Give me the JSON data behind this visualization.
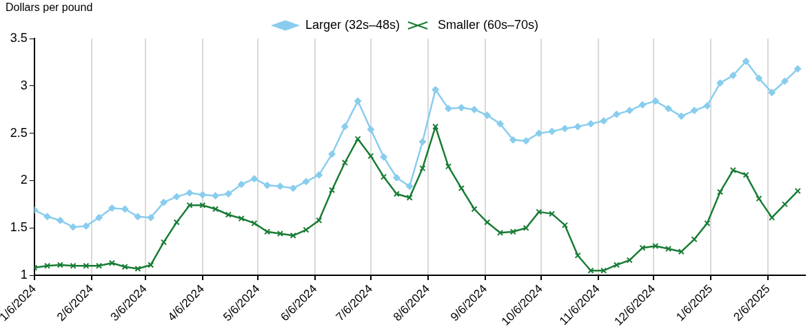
{
  "chart_data": {
    "type": "line",
    "ylabel": "Dollars per pound",
    "x": [
      "2024-01-06",
      "2024-01-13",
      "2024-01-20",
      "2024-01-27",
      "2024-02-03",
      "2024-02-10",
      "2024-02-17",
      "2024-02-24",
      "2024-03-02",
      "2024-03-09",
      "2024-03-16",
      "2024-03-23",
      "2024-03-30",
      "2024-04-06",
      "2024-04-13",
      "2024-04-20",
      "2024-04-27",
      "2024-05-04",
      "2024-05-11",
      "2024-05-18",
      "2024-05-25",
      "2024-06-01",
      "2024-06-08",
      "2024-06-15",
      "2024-06-22",
      "2024-06-29",
      "2024-07-06",
      "2024-07-13",
      "2024-07-20",
      "2024-07-27",
      "2024-08-03",
      "2024-08-10",
      "2024-08-17",
      "2024-08-24",
      "2024-08-31",
      "2024-09-07",
      "2024-09-14",
      "2024-09-21",
      "2024-09-28",
      "2024-10-05",
      "2024-10-12",
      "2024-10-19",
      "2024-10-26",
      "2024-11-02",
      "2024-11-09",
      "2024-11-16",
      "2024-11-23",
      "2024-11-30",
      "2024-12-07",
      "2024-12-14",
      "2024-12-21",
      "2024-12-28",
      "2025-01-04",
      "2025-01-11",
      "2025-01-18",
      "2025-01-25",
      "2025-02-01",
      "2025-02-08",
      "2025-02-15",
      "2025-02-22"
    ],
    "series": [
      {
        "name": "Larger (32s–48s)",
        "color": "#89cdee",
        "marker": "diamond",
        "values": [
          1.69,
          1.62,
          1.58,
          1.51,
          1.52,
          1.61,
          1.71,
          1.7,
          1.62,
          1.61,
          1.77,
          1.83,
          1.87,
          1.85,
          1.84,
          1.86,
          1.96,
          2.02,
          1.95,
          1.94,
          1.92,
          1.99,
          2.06,
          2.28,
          2.57,
          2.84,
          2.54,
          2.25,
          2.03,
          1.94,
          2.41,
          2.96,
          2.76,
          2.77,
          2.75,
          2.69,
          2.6,
          2.43,
          2.42,
          2.5,
          2.52,
          2.55,
          2.57,
          2.6,
          2.63,
          2.7,
          2.74,
          2.8,
          2.84,
          2.76,
          2.68,
          2.74,
          2.79,
          3.03,
          3.11,
          3.26,
          3.08,
          2.93,
          3.05,
          3.18
        ]
      },
      {
        "name": "Smaller (60s–70s)",
        "color": "#187c34",
        "marker": "cross",
        "values": [
          1.08,
          1.1,
          1.11,
          1.1,
          1.1,
          1.1,
          1.13,
          1.09,
          1.07,
          1.11,
          1.35,
          1.56,
          1.74,
          1.74,
          1.7,
          1.64,
          1.6,
          1.55,
          1.46,
          1.44,
          1.42,
          1.48,
          1.58,
          1.9,
          2.19,
          2.44,
          2.26,
          2.04,
          1.86,
          1.82,
          2.13,
          2.57,
          2.15,
          1.92,
          1.7,
          1.56,
          1.45,
          1.46,
          1.5,
          1.67,
          1.65,
          1.53,
          1.21,
          1.05,
          1.05,
          1.11,
          1.16,
          1.29,
          1.31,
          1.28,
          1.25,
          1.38,
          1.55,
          1.88,
          2.11,
          2.06,
          1.81,
          1.61,
          1.75,
          1.89
        ]
      }
    ],
    "xlim": [
      "2024-01-06",
      "2025-02-26"
    ],
    "xticks": [
      {
        "value": "2024-01-06",
        "label": "1/6/2024"
      },
      {
        "value": "2024-02-06",
        "label": "2/6/2024"
      },
      {
        "value": "2024-03-06",
        "label": "3/6/2024"
      },
      {
        "value": "2024-04-06",
        "label": "4/6/2024"
      },
      {
        "value": "2024-05-06",
        "label": "5/6/2024"
      },
      {
        "value": "2024-06-06",
        "label": "6/6/2024"
      },
      {
        "value": "2024-07-06",
        "label": "7/6/2024"
      },
      {
        "value": "2024-08-06",
        "label": "8/6/2024"
      },
      {
        "value": "2024-09-06",
        "label": "9/6/2024"
      },
      {
        "value": "2024-10-06",
        "label": "10/6/2024"
      },
      {
        "value": "2024-11-06",
        "label": "11/6/2024"
      },
      {
        "value": "2024-12-06",
        "label": "12/6/2024"
      },
      {
        "value": "2025-01-06",
        "label": "1/6/2025"
      },
      {
        "value": "2025-02-06",
        "label": "2/6/2025"
      }
    ],
    "ylim": [
      1,
      3.5
    ],
    "yticks": [
      1,
      1.5,
      2,
      2.5,
      3,
      3.5
    ],
    "grid": "x",
    "legend": "top",
    "line_style": "solid"
  }
}
